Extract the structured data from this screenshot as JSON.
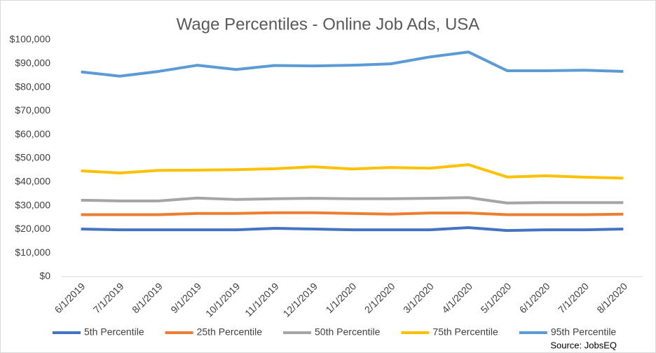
{
  "chart_data": {
    "type": "line",
    "title": "Wage Percentiles - Online Job Ads, USA",
    "categories": [
      "6/1/2019",
      "7/1/2019",
      "8/1/2019",
      "9/1/2019",
      "10/1/2019",
      "11/1/2019",
      "12/1/2019",
      "1/1/2020",
      "2/1/2020",
      "3/1/2020",
      "4/1/2020",
      "5/1/2020",
      "6/1/2020",
      "7/1/2020",
      "8/1/2020"
    ],
    "series": [
      {
        "name": "5th Percentile",
        "color": "#4472c4",
        "values": [
          20100,
          19800,
          19800,
          19800,
          19800,
          20400,
          20100,
          19800,
          19800,
          19800,
          20700,
          19500,
          19800,
          19800,
          20100
        ]
      },
      {
        "name": "25th Percentile",
        "color": "#ed7d31",
        "values": [
          26200,
          26200,
          26200,
          26700,
          26700,
          27000,
          27000,
          26700,
          26400,
          26900,
          26900,
          26200,
          26200,
          26200,
          26400
        ]
      },
      {
        "name": "50th Percentile",
        "color": "#a5a5a5",
        "values": [
          32300,
          32000,
          32000,
          33200,
          32600,
          32900,
          33100,
          32900,
          32900,
          33100,
          33400,
          31100,
          31300,
          31300,
          31300
        ]
      },
      {
        "name": "75th Percentile",
        "color": "#ffc000",
        "values": [
          44700,
          43800,
          44900,
          45000,
          45200,
          45600,
          46400,
          45500,
          46100,
          45800,
          47300,
          42100,
          42600,
          42000,
          41600
        ]
      },
      {
        "name": "95th Percentile",
        "color": "#5b9bd5",
        "values": [
          86500,
          84700,
          86700,
          89300,
          87500,
          89200,
          89000,
          89300,
          89900,
          92800,
          94900,
          87000,
          87000,
          87200,
          86700
        ]
      }
    ],
    "ylim": [
      0,
      100000
    ],
    "yticks": [
      {
        "value": 0,
        "label": "$0"
      },
      {
        "value": 10000,
        "label": "$10,000"
      },
      {
        "value": 20000,
        "label": "$20,000"
      },
      {
        "value": 30000,
        "label": "$30,000"
      },
      {
        "value": 40000,
        "label": "$40,000"
      },
      {
        "value": 50000,
        "label": "$50,000"
      },
      {
        "value": 60000,
        "label": "$60,000"
      },
      {
        "value": 70000,
        "label": "$70,000"
      },
      {
        "value": 80000,
        "label": "$80,000"
      },
      {
        "value": 90000,
        "label": "$90,000"
      },
      {
        "value": 100000,
        "label": "$100,000"
      }
    ],
    "grid": false,
    "legend": "bottom",
    "annotation": "Source: JobsEQ"
  }
}
